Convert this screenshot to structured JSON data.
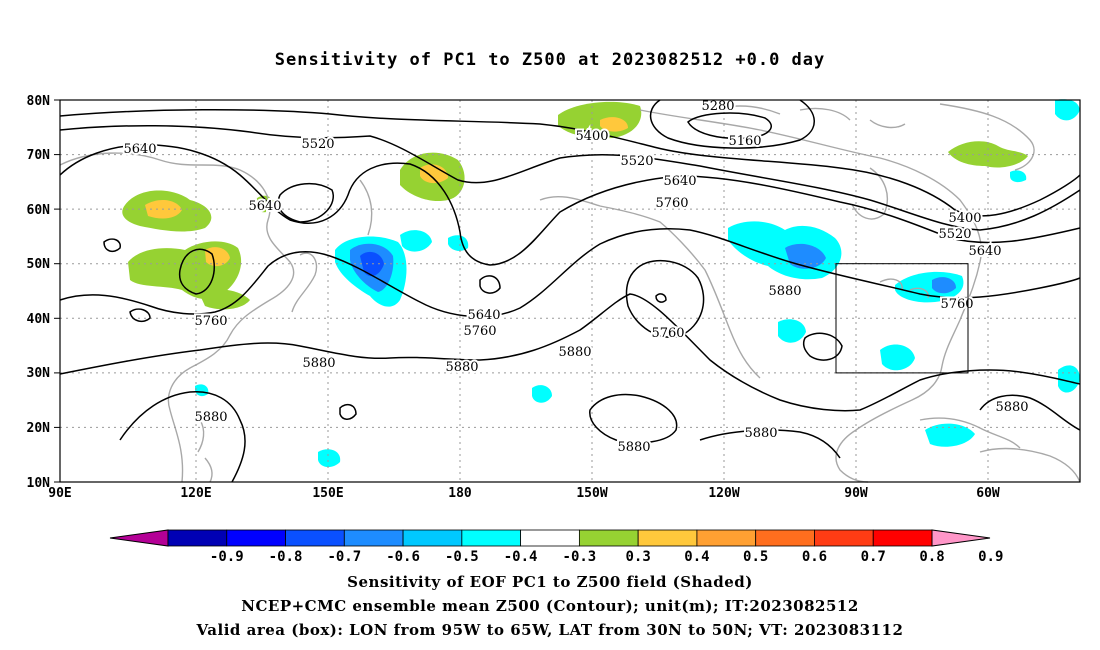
{
  "title": "Sensitivity of PC1 to Z500 at 2023082512 +0.0 day",
  "map": {
    "lat_labels": [
      "80N",
      "70N",
      "60N",
      "50N",
      "40N",
      "30N",
      "20N",
      "10N"
    ],
    "lon_labels": [
      "90E",
      "120E",
      "150E",
      "180",
      "150W",
      "120W",
      "90W",
      "60W"
    ],
    "contour_labels": [
      "5280",
      "5160",
      "5400",
      "5520",
      "5640",
      "5640",
      "5520",
      "5640",
      "5760",
      "5400",
      "5520",
      "5640",
      "5880",
      "5760",
      "5640",
      "5760",
      "5760",
      "5760",
      "5880",
      "5880",
      "5880",
      "5880",
      "5880",
      "5880",
      "5880"
    ],
    "valid_box": {
      "lon_range": [
        "95W",
        "65W"
      ],
      "lat_range": [
        "30N",
        "50N"
      ]
    }
  },
  "colorbar": {
    "labels": [
      "-0.9",
      "-0.8",
      "-0.7",
      "-0.6",
      "-0.5",
      "-0.4",
      "-0.3",
      "0.3",
      "0.4",
      "0.5",
      "0.6",
      "0.7",
      "0.8",
      "0.9"
    ],
    "colors": [
      "#b40096",
      "#0000b4",
      "#0000ff",
      "#0a50ff",
      "#1e8cff",
      "#00c8ff",
      "#00ffff",
      "#ffffff",
      "#96d232",
      "#ffc83c",
      "#ffa032",
      "#ff6e1e",
      "#ff3c14",
      "#ff0000",
      "#ff96c8"
    ]
  },
  "footer": {
    "line1": "Sensitivity of EOF PC1 to Z500 field (Shaded)",
    "line2": "NCEP+CMC ensemble mean Z500 (Contour); unit(m); IT:2023082512",
    "line3": "Valid area (box): LON from 95W to 65W, LAT from 30N to 50N; VT: 2023083112"
  }
}
